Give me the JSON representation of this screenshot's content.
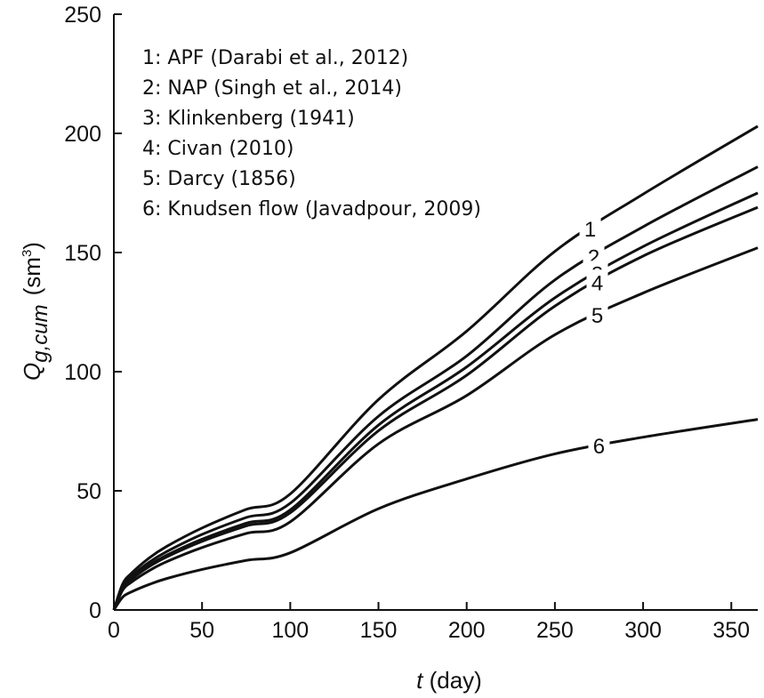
{
  "chart_data": {
    "type": "line",
    "xlabel_var": "t",
    "xlabel_unit": " (day)",
    "ylabel_var": "Q",
    "ylabel_sub": "g,cum",
    "ylabel_unit_pre": "(sm",
    "ylabel_unit_sup": "3",
    "ylabel_unit_post": ")",
    "xlim": [
      0,
      365
    ],
    "ylim": [
      0,
      250
    ],
    "xticks": [
      "0",
      "50",
      "100",
      "150",
      "200",
      "250",
      "300",
      "350"
    ],
    "yticks": [
      "0",
      "50",
      "100",
      "150",
      "200",
      "250"
    ],
    "grid": false,
    "legend_position": "top-left",
    "legend": [
      "1: APF (Darabi et al., 2012)",
      "2: NAP (Singh et al., 2014)",
      "3: Klinkenberg (1941)",
      "4: Civan (2010)",
      "5: Darcy (1856)",
      "6: Knudsen flow (Javadpour, 2009)"
    ],
    "x": [
      0,
      5,
      10,
      20,
      30,
      50,
      75,
      100,
      150,
      200,
      250,
      300,
      365
    ],
    "series": [
      {
        "name": "1",
        "label_at": 270,
        "values": [
          0,
          10.9,
          15.4,
          21.8,
          26.7,
          34.4,
          42.2,
          48.7,
          88.3,
          117.0,
          150.5,
          174.5,
          203.0
        ]
      },
      {
        "name": "2",
        "label_at": 272,
        "values": [
          0,
          10.0,
          14.2,
          20.0,
          24.5,
          31.7,
          38.8,
          44.8,
          81.3,
          106.6,
          138.5,
          160.8,
          186.0
        ]
      },
      {
        "name": "3",
        "label_at": 274,
        "values": [
          0,
          9.4,
          13.3,
          18.8,
          23.0,
          29.7,
          36.4,
          42.0,
          77.6,
          102.0,
          131.0,
          152.5,
          175.0
        ]
      },
      {
        "name": "4",
        "label_at": 274,
        "values": [
          0,
          9.1,
          12.9,
          18.2,
          22.3,
          28.8,
          35.3,
          40.8,
          75.2,
          98.5,
          127.5,
          148.5,
          169.0
        ]
      },
      {
        "name": "5",
        "label_at": 274,
        "values": [
          0,
          8.3,
          11.7,
          16.5,
          20.3,
          26.2,
          32.1,
          37.0,
          69.7,
          90.0,
          115.5,
          133.0,
          152.0
        ]
      },
      {
        "name": "6",
        "label_at": 275,
        "values": [
          0,
          5.4,
          7.6,
          10.7,
          13.2,
          17.0,
          20.8,
          24.0,
          42.5,
          55.0,
          65.5,
          72.5,
          80.0
        ]
      }
    ]
  }
}
